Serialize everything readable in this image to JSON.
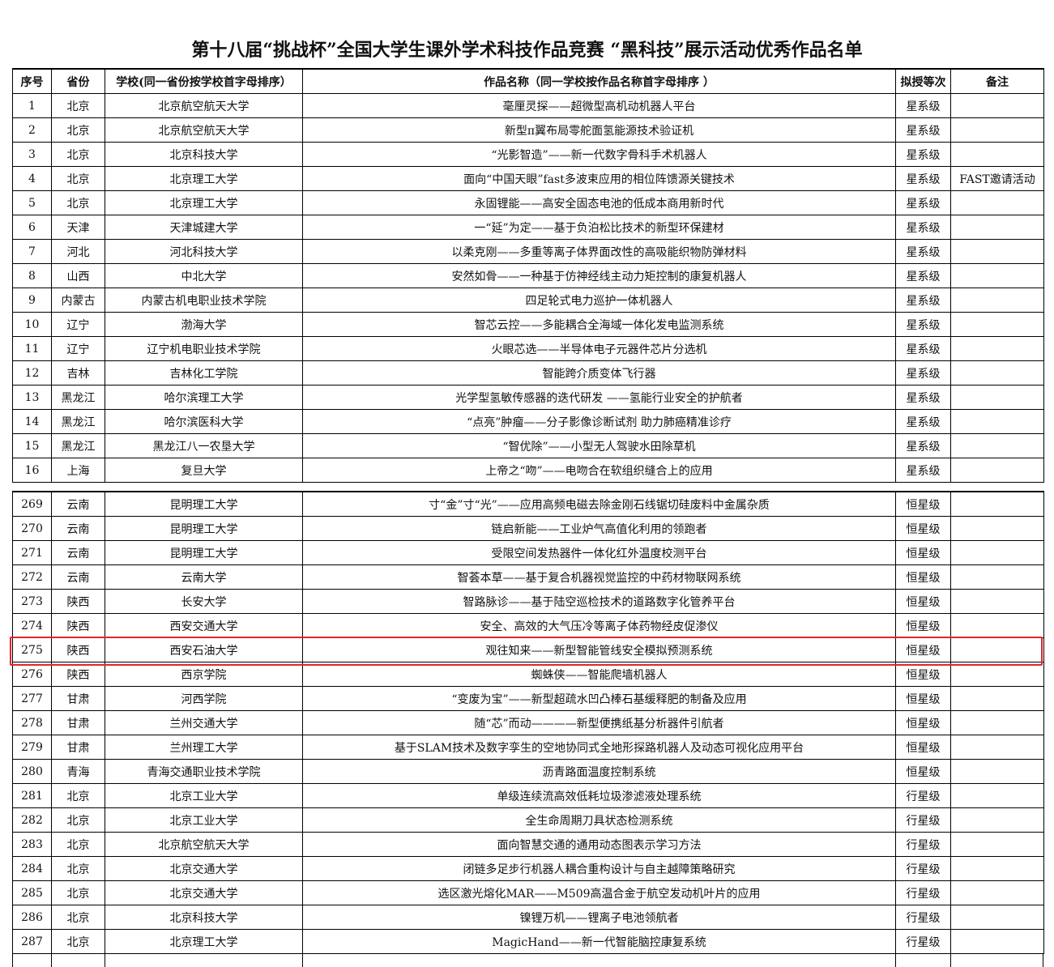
{
  "title": "第十八届“挑战杯”全国大学生课外学术科技作品竞赛 “黑科技”展示活动优秀作品名单",
  "table": {
    "columns": [
      "序号",
      "省份",
      "学校(同一省份按学校首字母排序）",
      "作品名称（同一学校按作品名称首字母排序 ）",
      "拟授等次",
      "备注"
    ],
    "sections": [
      [
        {
          "no": 1,
          "province": "北京",
          "school": "北京航空航天大学",
          "work": "毫厘灵探——超微型高机动机器人平台",
          "level": "星系级"
        },
        {
          "no": 2,
          "province": "北京",
          "school": "北京航空航天大学",
          "work": "新型π翼布局零舵面氢能源技术验证机",
          "level": "星系级"
        },
        {
          "no": 3,
          "province": "北京",
          "school": "北京科技大学",
          "work": "“光影智造”——新一代数字骨科手术机器人",
          "level": "星系级"
        },
        {
          "no": 4,
          "province": "北京",
          "school": "北京理工大学",
          "work": "面向“中国天眼”fast多波束应用的相位阵馈源关键技术",
          "level": "星系级",
          "remark": "FAST邀请活动"
        },
        {
          "no": 5,
          "province": "北京",
          "school": "北京理工大学",
          "work": "永固锂能——高安全固态电池的低成本商用新时代",
          "level": "星系级"
        },
        {
          "no": 6,
          "province": "天津",
          "school": "天津城建大学",
          "work": "一“延”为定——基于负泊松比技术的新型环保建材",
          "level": "星系级"
        },
        {
          "no": 7,
          "province": "河北",
          "school": "河北科技大学",
          "work": "以柔克刚——多重等离子体界面改性的高吸能织物防弹材料",
          "level": "星系级"
        },
        {
          "no": 8,
          "province": "山西",
          "school": "中北大学",
          "work": "安然如骨——一种基于仿神经线主动力矩控制的康复机器人",
          "level": "星系级"
        },
        {
          "no": 9,
          "province": "内蒙古",
          "school": "内蒙古机电职业技术学院",
          "work": "四足轮式电力巡护一体机器人",
          "level": "星系级"
        },
        {
          "no": 10,
          "province": "辽宁",
          "school": "渤海大学",
          "work": "智芯云控——多能耦合全海域一体化发电监测系统",
          "level": "星系级"
        },
        {
          "no": 11,
          "province": "辽宁",
          "school": "辽宁机电职业技术学院",
          "work": "火眼芯选——半导体电子元器件芯片分选机",
          "level": "星系级"
        },
        {
          "no": 12,
          "province": "吉林",
          "school": "吉林化工学院",
          "work": "智能跨介质变体飞行器",
          "level": "星系级"
        },
        {
          "no": 13,
          "province": "黑龙江",
          "school": "哈尔滨理工大学",
          "work": "光学型氢敏传感器的迭代研发 ——氢能行业安全的护航者",
          "level": "星系级"
        },
        {
          "no": 14,
          "province": "黑龙江",
          "school": "哈尔滨医科大学",
          "work": "“点亮”肿瘤——分子影像诊断试剂 助力肺癌精准诊疗",
          "level": "星系级"
        },
        {
          "no": 15,
          "province": "黑龙江",
          "school": "黑龙江八一农垦大学",
          "work": "“智优除”——小型无人驾驶水田除草机",
          "level": "星系级"
        },
        {
          "no": 16,
          "province": "上海",
          "school": "复旦大学",
          "work": "上帝之“吻”——电吻合在软组织缝合上的应用",
          "level": "星系级"
        }
      ],
      [
        {
          "no": 269,
          "province": "云南",
          "school": "昆明理工大学",
          "work": "寸“金”寸“光”——应用高频电磁去除金刚石线锯切硅废料中金属杂质",
          "level": "恒星级"
        },
        {
          "no": 270,
          "province": "云南",
          "school": "昆明理工大学",
          "work": "链启新能——工业炉气高值化利用的领跑者",
          "level": "恒星级"
        },
        {
          "no": 271,
          "province": "云南",
          "school": "昆明理工大学",
          "work": "受限空间发热器件一体化红外温度校测平台",
          "level": "恒星级"
        },
        {
          "no": 272,
          "province": "云南",
          "school": "云南大学",
          "work": "智荟本草——基于复合机器视觉监控的中药材物联网系统",
          "level": "恒星级"
        },
        {
          "no": 273,
          "province": "陕西",
          "school": "长安大学",
          "work": "智路脉诊——基于陆空巡检技术的道路数字化管养平台",
          "level": "恒星级"
        },
        {
          "no": 274,
          "province": "陕西",
          "school": "西安交通大学",
          "work": "安全、高效的大气压冷等离子体药物经皮促渗仪",
          "level": "恒星级"
        },
        {
          "no": 275,
          "province": "陕西",
          "school": "西安石油大学",
          "work": "观往知来——新型智能管线安全模拟预测系统",
          "level": "恒星级"
        },
        {
          "no": 276,
          "province": "陕西",
          "school": "西京学院",
          "work": "蜘蛛侠——智能爬墙机器人",
          "level": "恒星级"
        },
        {
          "no": 277,
          "province": "甘肃",
          "school": "河西学院",
          "work": "“变废为宝”——新型超疏水凹凸棒石基缓释肥的制备及应用",
          "level": "恒星级"
        },
        {
          "no": 278,
          "province": "甘肃",
          "school": "兰州交通大学",
          "work": "随“芯”而动————新型便携纸基分析器件引航者",
          "level": "恒星级"
        },
        {
          "no": 279,
          "province": "甘肃",
          "school": "兰州理工大学",
          "work": "基于SLAM技术及数字孪生的空地协同式全地形探路机器人及动态可视化应用平台",
          "level": "恒星级"
        },
        {
          "no": 280,
          "province": "青海",
          "school": "青海交通职业技术学院",
          "work": "沥青路面温度控制系统",
          "level": "恒星级"
        },
        {
          "no": 281,
          "province": "北京",
          "school": "北京工业大学",
          "work": "单级连续流高效低耗垃圾渗滤液处理系统",
          "level": "行星级"
        },
        {
          "no": 282,
          "province": "北京",
          "school": "北京工业大学",
          "work": "全生命周期刀具状态检测系统",
          "level": "行星级"
        },
        {
          "no": 283,
          "province": "北京",
          "school": "北京航空航天大学",
          "work": "面向智慧交通的通用动态图表示学习方法",
          "level": "行星级"
        },
        {
          "no": 284,
          "province": "北京",
          "school": "北京交通大学",
          "work": "闭链多足步行机器人耦合重构设计与自主越障策略研究",
          "level": "行星级"
        },
        {
          "no": 285,
          "province": "北京",
          "school": "北京交通大学",
          "work": "选区激光熔化MAR——M509高温合金于航空发动机叶片的应用",
          "level": "行星级"
        },
        {
          "no": 286,
          "province": "北京",
          "school": "北京科技大学",
          "work": "镍锂万机——锂离子电池领航者",
          "level": "行星级"
        },
        {
          "no": 287,
          "province": "北京",
          "school": "北京理工大学",
          "work": "MagicHand——新一代智能脑控康复系统",
          "level": "行星级"
        }
      ]
    ]
  }
}
